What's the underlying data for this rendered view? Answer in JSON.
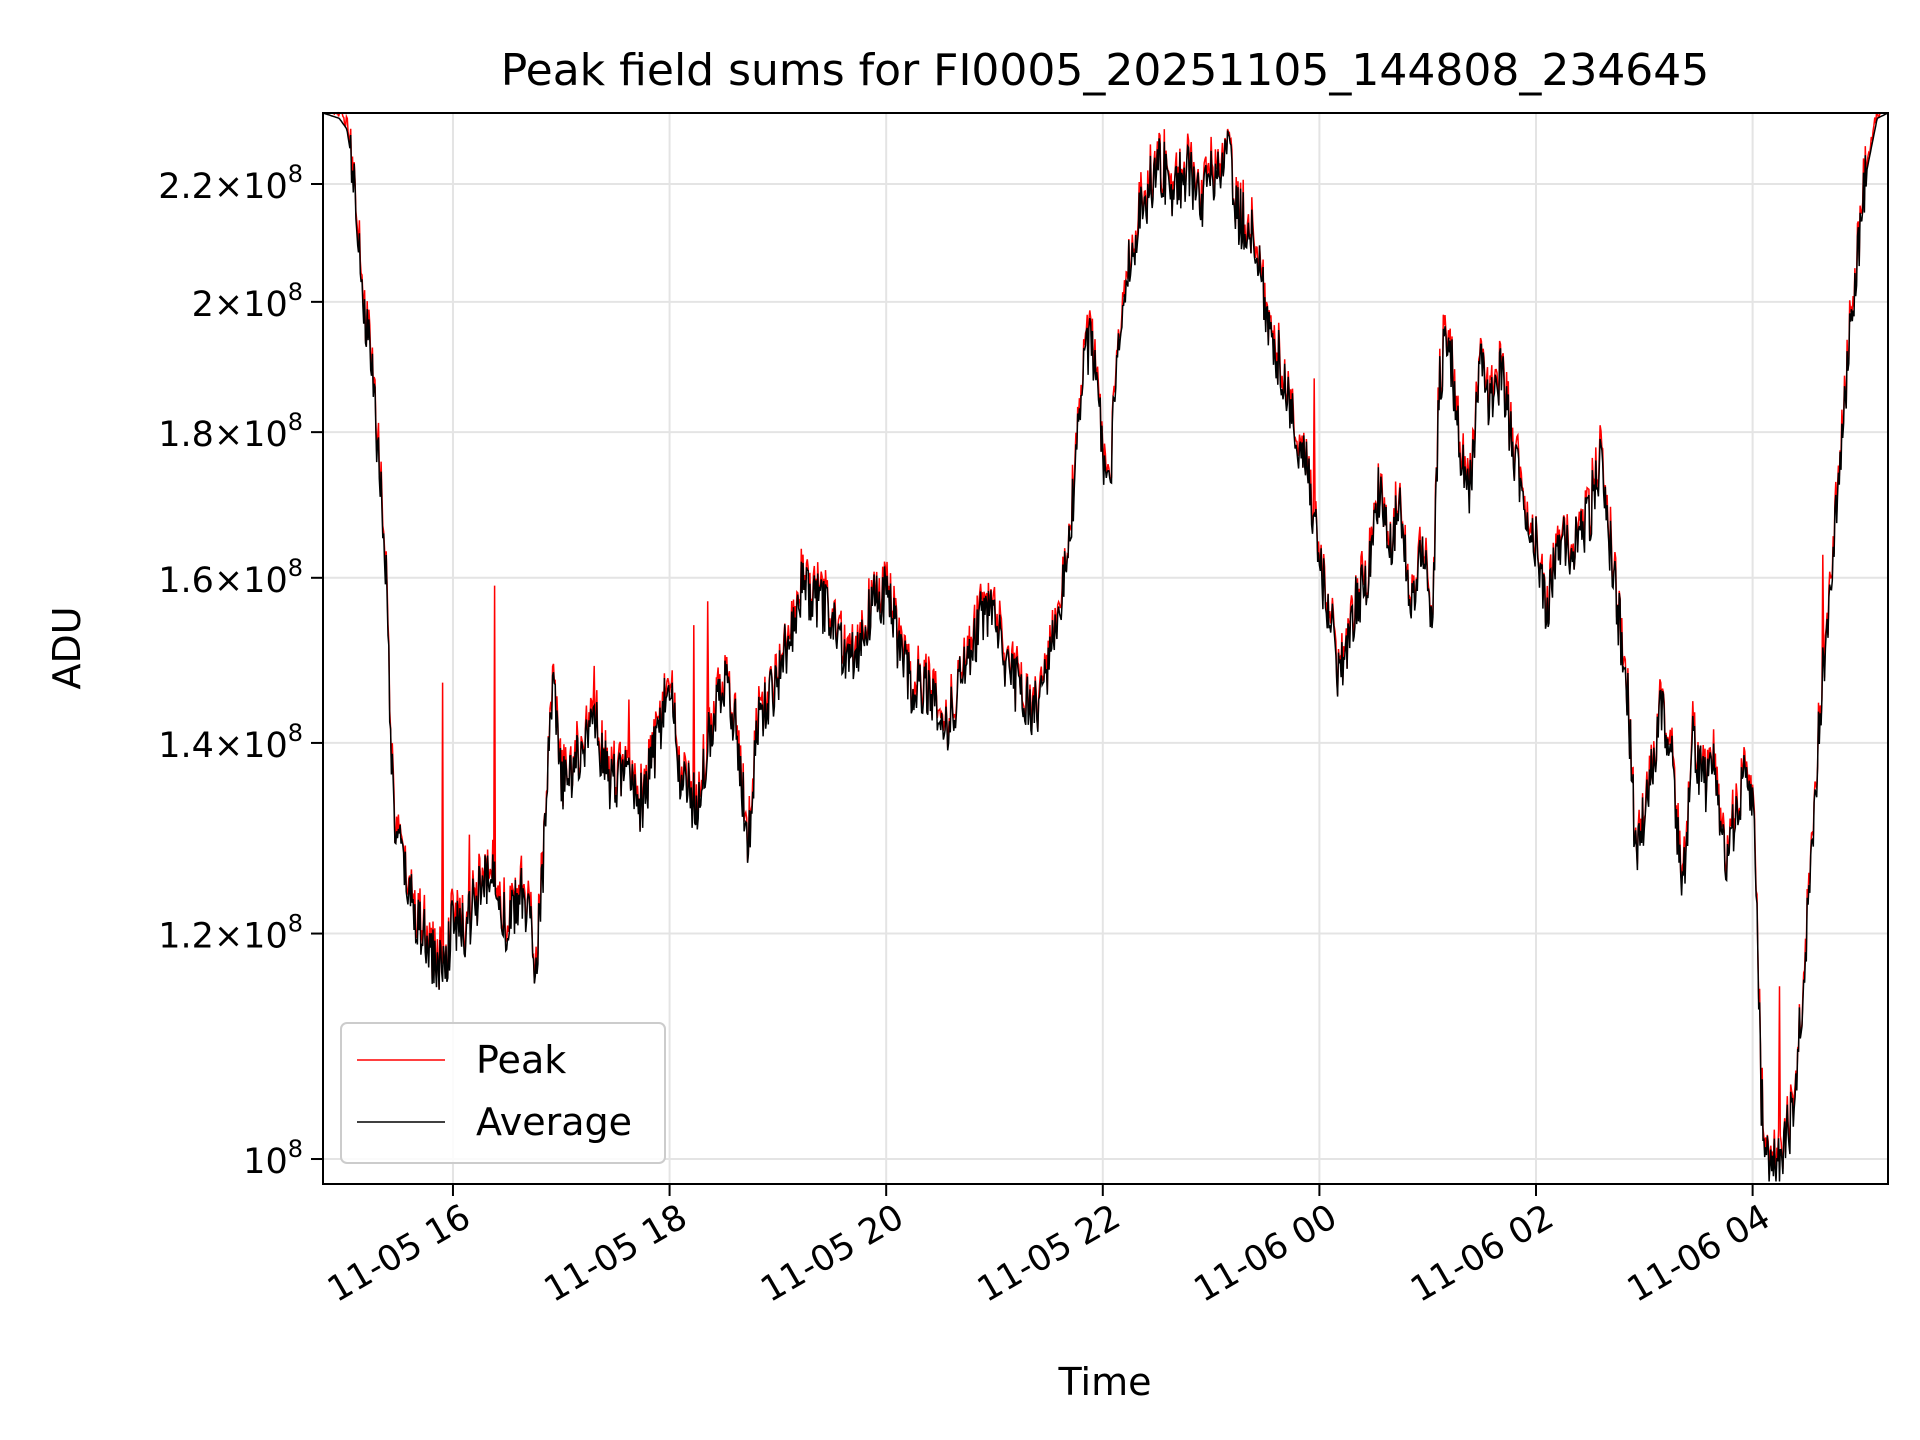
{
  "chart_data": {
    "type": "line",
    "title": "Peak field sums for FI0005_20251105_144808_234645",
    "xlabel": "Time",
    "ylabel": "ADU",
    "yscale": "log",
    "grid": true,
    "legend_position": "lower-left",
    "x_unit": "hours since 2025-11-05 00:00",
    "xlim": [
      14.8,
      29.25
    ],
    "ylim": [
      98000000.0,
      233000000.0
    ],
    "x_ticks": [
      {
        "x": 16,
        "label": "11-05 16"
      },
      {
        "x": 18,
        "label": "11-05 18"
      },
      {
        "x": 20,
        "label": "11-05 20"
      },
      {
        "x": 22,
        "label": "11-05 22"
      },
      {
        "x": 24,
        "label": "11-06 00"
      },
      {
        "x": 26,
        "label": "11-06 02"
      },
      {
        "x": 28,
        "label": "11-06 04"
      }
    ],
    "y_ticks": [
      {
        "y": 100000000.0,
        "mantissa": "",
        "exp": "8",
        "label": "10^8"
      },
      {
        "y": 120000000.0,
        "mantissa": "1.2",
        "exp": "8",
        "label": "1.2×10^8"
      },
      {
        "y": 140000000.0,
        "mantissa": "1.4",
        "exp": "8",
        "label": "1.4×10^8"
      },
      {
        "y": 160000000.0,
        "mantissa": "1.6",
        "exp": "8",
        "label": "1.6×10^8"
      },
      {
        "y": 180000000.0,
        "mantissa": "1.8",
        "exp": "8",
        "label": "1.8×10^8"
      },
      {
        "y": 200000000.0,
        "mantissa": "2",
        "exp": "8",
        "label": "2×10^8"
      },
      {
        "y": 220000000.0,
        "mantissa": "2.2",
        "exp": "8",
        "label": "2.2×10^8"
      }
    ],
    "series": [
      {
        "name": "Peak",
        "color": "#ff0000",
        "role": "peak"
      },
      {
        "name": "Average",
        "color": "#000000",
        "role": "average"
      }
    ],
    "average_anchor_points": [
      [
        14.8,
        233000000.0
      ],
      [
        14.95,
        232000000.0
      ],
      [
        15.02,
        230000000.0
      ],
      [
        15.1,
        220000000.0
      ],
      [
        15.17,
        200000000.0
      ],
      [
        15.25,
        190000000.0
      ],
      [
        15.32,
        175000000.0
      ],
      [
        15.38,
        162000000.0
      ],
      [
        15.45,
        132000000.0
      ],
      [
        15.55,
        126000000.0
      ],
      [
        15.65,
        122000000.0
      ],
      [
        15.75,
        119000000.0
      ],
      [
        15.85,
        117000000.0
      ],
      [
        15.92,
        117000000.0
      ],
      [
        16.0,
        121000000.0
      ],
      [
        16.1,
        120000000.0
      ],
      [
        16.2,
        123000000.0
      ],
      [
        16.3,
        125000000.0
      ],
      [
        16.4,
        126000000.0
      ],
      [
        16.5,
        120000000.0
      ],
      [
        16.62,
        124000000.0
      ],
      [
        16.7,
        122000000.0
      ],
      [
        16.76,
        117000000.0
      ],
      [
        16.83,
        126000000.0
      ],
      [
        16.92,
        147000000.0
      ],
      [
        17.0,
        135000000.0
      ],
      [
        17.15,
        138000000.0
      ],
      [
        17.3,
        143000000.0
      ],
      [
        17.45,
        135000000.0
      ],
      [
        17.6,
        137000000.0
      ],
      [
        17.75,
        133000000.0
      ],
      [
        17.9,
        141000000.0
      ],
      [
        18.0,
        147000000.0
      ],
      [
        18.1,
        136000000.0
      ],
      [
        18.25,
        133000000.0
      ],
      [
        18.4,
        143000000.0
      ],
      [
        18.5,
        148000000.0
      ],
      [
        18.62,
        142000000.0
      ],
      [
        18.72,
        128000000.0
      ],
      [
        18.82,
        143000000.0
      ],
      [
        18.95,
        146000000.0
      ],
      [
        19.1,
        152000000.0
      ],
      [
        19.2,
        159000000.0
      ],
      [
        19.35,
        157000000.0
      ],
      [
        19.5,
        155000000.0
      ],
      [
        19.62,
        150000000.0
      ],
      [
        19.75,
        152000000.0
      ],
      [
        19.9,
        157000000.0
      ],
      [
        20.0,
        158000000.0
      ],
      [
        20.12,
        151000000.0
      ],
      [
        20.25,
        146000000.0
      ],
      [
        20.4,
        147000000.0
      ],
      [
        20.55,
        141000000.0
      ],
      [
        20.7,
        148000000.0
      ],
      [
        20.85,
        154000000.0
      ],
      [
        20.98,
        157000000.0
      ],
      [
        21.1,
        148000000.0
      ],
      [
        21.25,
        146000000.0
      ],
      [
        21.35,
        143000000.0
      ],
      [
        21.5,
        148000000.0
      ],
      [
        21.62,
        158000000.0
      ],
      [
        21.7,
        166000000.0
      ],
      [
        21.8,
        185000000.0
      ],
      [
        21.88,
        195000000.0
      ],
      [
        21.95,
        185000000.0
      ],
      [
        22.05,
        170000000.0
      ],
      [
        22.15,
        195000000.0
      ],
      [
        22.25,
        207000000.0
      ],
      [
        22.4,
        218000000.0
      ],
      [
        22.52,
        224000000.0
      ],
      [
        22.65,
        219000000.0
      ],
      [
        22.78,
        223000000.0
      ],
      [
        22.9,
        216000000.0
      ],
      [
        23.02,
        222000000.0
      ],
      [
        23.15,
        225000000.0
      ],
      [
        23.25,
        215000000.0
      ],
      [
        23.4,
        210000000.0
      ],
      [
        23.5,
        200000000.0
      ],
      [
        23.6,
        192000000.0
      ],
      [
        23.7,
        187000000.0
      ],
      [
        23.8,
        178000000.0
      ],
      [
        23.9,
        174000000.0
      ],
      [
        24.0,
        162000000.0
      ],
      [
        24.1,
        155000000.0
      ],
      [
        24.18,
        148000000.0
      ],
      [
        24.25,
        152000000.0
      ],
      [
        24.35,
        157000000.0
      ],
      [
        24.45,
        160000000.0
      ],
      [
        24.55,
        172000000.0
      ],
      [
        24.65,
        164000000.0
      ],
      [
        24.75,
        170000000.0
      ],
      [
        24.85,
        155000000.0
      ],
      [
        24.95,
        165000000.0
      ],
      [
        25.05,
        155000000.0
      ],
      [
        25.1,
        185000000.0
      ],
      [
        25.18,
        197000000.0
      ],
      [
        25.28,
        180000000.0
      ],
      [
        25.38,
        170000000.0
      ],
      [
        25.48,
        190000000.0
      ],
      [
        25.58,
        183000000.0
      ],
      [
        25.68,
        190000000.0
      ],
      [
        25.78,
        178000000.0
      ],
      [
        25.9,
        170000000.0
      ],
      [
        26.0,
        165000000.0
      ],
      [
        26.1,
        155000000.0
      ],
      [
        26.2,
        166000000.0
      ],
      [
        26.3,
        163000000.0
      ],
      [
        26.4,
        166000000.0
      ],
      [
        26.5,
        169000000.0
      ],
      [
        26.6,
        176000000.0
      ],
      [
        26.7,
        162000000.0
      ],
      [
        26.78,
        153000000.0
      ],
      [
        26.85,
        145000000.0
      ],
      [
        26.92,
        128000000.0
      ],
      [
        27.0,
        132000000.0
      ],
      [
        27.08,
        138000000.0
      ],
      [
        27.15,
        143000000.0
      ],
      [
        27.25,
        140000000.0
      ],
      [
        27.35,
        123000000.0
      ],
      [
        27.45,
        140000000.0
      ],
      [
        27.55,
        135000000.0
      ],
      [
        27.65,
        138000000.0
      ],
      [
        27.75,
        126000000.0
      ],
      [
        27.85,
        133000000.0
      ],
      [
        27.95,
        137000000.0
      ],
      [
        28.02,
        130000000.0
      ],
      [
        28.08,
        105000000.0
      ],
      [
        28.15,
        99000000.0
      ],
      [
        28.25,
        100000000.0
      ],
      [
        28.35,
        103000000.0
      ],
      [
        28.45,
        112000000.0
      ],
      [
        28.55,
        130000000.0
      ],
      [
        28.65,
        148000000.0
      ],
      [
        28.75,
        165000000.0
      ],
      [
        28.85,
        185000000.0
      ],
      [
        28.95,
        205000000.0
      ],
      [
        29.05,
        222000000.0
      ],
      [
        29.15,
        232000000.0
      ],
      [
        29.25,
        233000000.0
      ]
    ],
    "peak_spikes": [
      [
        15.9,
        147000000.0
      ],
      [
        16.15,
        130000000.0
      ],
      [
        16.38,
        159000000.0
      ],
      [
        17.3,
        149000000.0
      ],
      [
        17.62,
        145000000.0
      ],
      [
        18.22,
        154000000.0
      ],
      [
        18.35,
        157000000.0
      ],
      [
        23.95,
        188000000.0
      ],
      [
        28.25,
        115000000.0
      ],
      [
        28.65,
        163000000.0
      ]
    ]
  }
}
